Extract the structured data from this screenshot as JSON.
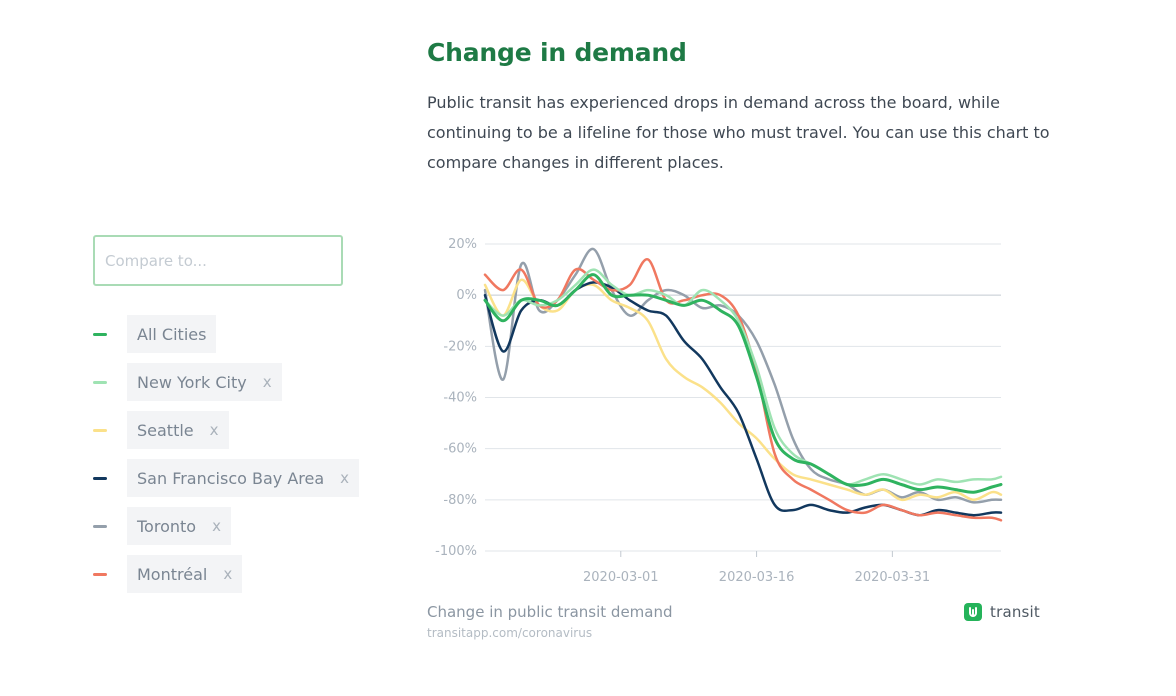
{
  "header": {
    "title": "Change in demand",
    "intro": "Public transit has experienced drops in demand across the board, while continuing to be a lifeline for those who must travel. You can use this chart to compare changes in different places."
  },
  "compare": {
    "placeholder": "Compare to..."
  },
  "legend": [
    {
      "label": "All Cities",
      "color": "#2fb35f",
      "removable": false
    },
    {
      "label": "New York City",
      "color": "#9fe3b3",
      "removable": true,
      "remove_label": "x"
    },
    {
      "label": "Seattle",
      "color": "#fbe18a",
      "removable": true,
      "remove_label": "x"
    },
    {
      "label": "San Francisco Bay Area",
      "color": "#12385e",
      "removable": true,
      "remove_label": "x"
    },
    {
      "label": "Toronto",
      "color": "#949fab",
      "removable": true,
      "remove_label": "x"
    },
    {
      "label": "Montréal",
      "color": "#f07860",
      "removable": true,
      "remove_label": "x"
    }
  ],
  "chart_data": {
    "type": "line",
    "x_start": "2020-02-15",
    "x_end": "2020-04-12",
    "xlim": [
      "2020-02-15",
      "2020-04-12"
    ],
    "x_ticks": [
      "2020-03-01",
      "2020-03-16",
      "2020-03-31"
    ],
    "ylim": [
      -100,
      20
    ],
    "y_ticks": [
      20,
      0,
      -20,
      -40,
      -60,
      -80,
      -100
    ],
    "y_tick_labels": [
      "20%",
      "0%",
      "-20%",
      "-40%",
      "-60%",
      "-80%",
      "-100%"
    ],
    "grid": true,
    "x": [
      "2020-02-15",
      "2020-02-17",
      "2020-02-19",
      "2020-02-21",
      "2020-02-23",
      "2020-02-25",
      "2020-02-27",
      "2020-02-29",
      "2020-03-02",
      "2020-03-04",
      "2020-03-06",
      "2020-03-08",
      "2020-03-10",
      "2020-03-12",
      "2020-03-14",
      "2020-03-16",
      "2020-03-18",
      "2020-03-20",
      "2020-03-22",
      "2020-03-24",
      "2020-03-26",
      "2020-03-28",
      "2020-03-30",
      "2020-04-01",
      "2020-04-03",
      "2020-04-05",
      "2020-04-07",
      "2020-04-09",
      "2020-04-11",
      "2020-04-12"
    ],
    "series": [
      {
        "name": "Toronto",
        "color": "#949fab",
        "values": [
          2,
          -33,
          12,
          -6,
          -2,
          8,
          18,
          2,
          -8,
          -2,
          2,
          0,
          -5,
          -4,
          -8,
          -18,
          -35,
          -56,
          -68,
          -72,
          -74,
          -78,
          -76,
          -79,
          -77,
          -80,
          -79,
          -81,
          -80,
          -80
        ]
      },
      {
        "name": "Seattle",
        "color": "#fbe18a",
        "values": [
          4,
          -8,
          6,
          -4,
          -6,
          2,
          4,
          -2,
          -5,
          -10,
          -25,
          -32,
          -36,
          -42,
          -50,
          -56,
          -64,
          -70,
          -72,
          -74,
          -76,
          -78,
          -76,
          -80,
          -78,
          -79,
          -77,
          -80,
          -77,
          -78
        ]
      },
      {
        "name": "San Francisco Bay Area",
        "color": "#12385e",
        "values": [
          0,
          -22,
          -6,
          -2,
          -4,
          2,
          5,
          3,
          -2,
          -6,
          -8,
          -18,
          -25,
          -36,
          -46,
          -64,
          -82,
          -84,
          -82,
          -84,
          -85,
          -83,
          -82,
          -84,
          -86,
          -84,
          -85,
          -86,
          -85,
          -85
        ]
      },
      {
        "name": "Montréal",
        "color": "#f07860",
        "values": [
          8,
          2,
          10,
          -4,
          -2,
          10,
          6,
          2,
          4,
          14,
          -2,
          -2,
          0,
          0,
          -8,
          -30,
          -62,
          -72,
          -76,
          -80,
          -84,
          -85,
          -82,
          -84,
          -86,
          -85,
          -86,
          -87,
          -87,
          -88
        ]
      },
      {
        "name": "New York City",
        "color": "#9fe3b3",
        "values": [
          -2,
          -8,
          -2,
          -4,
          -2,
          4,
          10,
          4,
          0,
          2,
          0,
          -4,
          2,
          -2,
          -10,
          -28,
          -52,
          -62,
          -66,
          -70,
          -74,
          -72,
          -70,
          -72,
          -74,
          -72,
          -73,
          -72,
          -72,
          -71
        ]
      },
      {
        "name": "All Cities",
        "color": "#2fb35f",
        "values": [
          -2,
          -10,
          -2,
          -2,
          -4,
          2,
          8,
          0,
          0,
          0,
          -2,
          -4,
          -2,
          -6,
          -12,
          -32,
          -56,
          -64,
          -66,
          -70,
          -74,
          -74,
          -72,
          -74,
          -76,
          -75,
          -76,
          -77,
          -75,
          -74
        ]
      }
    ]
  },
  "footer": {
    "caption": "Change in public transit demand",
    "source": "transitapp.com/coronavirus",
    "brand": "transit"
  }
}
